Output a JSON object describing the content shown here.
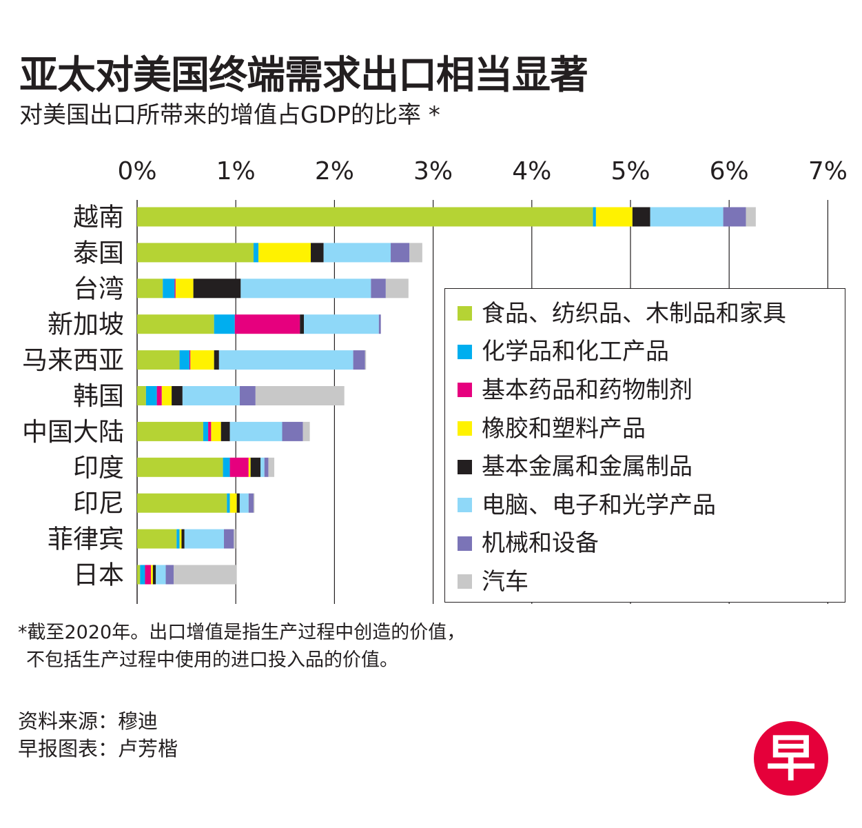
{
  "title": "亚太对美国终端需求出口相当显著",
  "subtitle": "对美国出口所带来的增值占GDP的比率 *",
  "chart_data": {
    "type": "bar",
    "orientation": "horizontal",
    "stacked": true,
    "title": "亚太对美国终端需求出口相当显著",
    "subtitle": "对美国出口所带来的增值占GDP的比率 *",
    "xlim": [
      0,
      7
    ],
    "x_ticks": [
      "0%",
      "1%",
      "2%",
      "3%",
      "4%",
      "5%",
      "6%",
      "7%"
    ],
    "grid": true,
    "legend_position": "right",
    "categories": [
      "越南",
      "泰国",
      "台湾",
      "新加坡",
      "马来西亚",
      "韩国",
      "中国大陆",
      "印度",
      "印尼",
      "菲律宾",
      "日本"
    ],
    "series": [
      {
        "name": "食品、纺织品、木制品和家具",
        "color": "#b5d334",
        "values": [
          4.62,
          1.18,
          0.26,
          0.78,
          0.43,
          0.09,
          0.67,
          0.87,
          0.91,
          0.4,
          0.03
        ]
      },
      {
        "name": "化学品和化工产品",
        "color": "#00aeef",
        "values": [
          0.03,
          0.05,
          0.12,
          0.21,
          0.1,
          0.11,
          0.05,
          0.07,
          0.03,
          0.03,
          0.05
        ]
      },
      {
        "name": "基本药品和药物制剂",
        "color": "#e6007e",
        "values": [
          0.0,
          0.0,
          0.01,
          0.66,
          0.01,
          0.05,
          0.03,
          0.19,
          0.0,
          0.0,
          0.06
        ]
      },
      {
        "name": "橡胶和塑料产品",
        "color": "#fff200",
        "values": [
          0.37,
          0.53,
          0.18,
          0.0,
          0.24,
          0.1,
          0.1,
          0.02,
          0.07,
          0.02,
          0.02
        ]
      },
      {
        "name": "基本金属和金属制品",
        "color": "#231f20",
        "values": [
          0.18,
          0.13,
          0.48,
          0.04,
          0.05,
          0.11,
          0.09,
          0.1,
          0.03,
          0.03,
          0.03
        ]
      },
      {
        "name": "电脑、电子和光学产品",
        "color": "#8fd8f8",
        "values": [
          0.74,
          0.68,
          1.32,
          0.76,
          1.36,
          0.58,
          0.53,
          0.04,
          0.09,
          0.4,
          0.1
        ]
      },
      {
        "name": "机械和设备",
        "color": "#7b74b7",
        "values": [
          0.23,
          0.19,
          0.15,
          0.02,
          0.12,
          0.16,
          0.21,
          0.04,
          0.05,
          0.1,
          0.08
        ]
      },
      {
        "name": "汽车",
        "color": "#c8c8c8",
        "values": [
          0.1,
          0.13,
          0.23,
          0.0,
          0.01,
          0.9,
          0.07,
          0.06,
          0.01,
          0.02,
          0.64
        ]
      }
    ]
  },
  "note": {
    "line1": "*截至2020年。出口增值是指生产过程中创造的价值，",
    "line2": "不包括生产过程中使用的进口投入品的价值。"
  },
  "credits": {
    "source": "资料来源：穆迪",
    "chart_by": "早报图表：卢芳楷"
  },
  "logo": {
    "text": "早",
    "color": "#e5003a"
  }
}
